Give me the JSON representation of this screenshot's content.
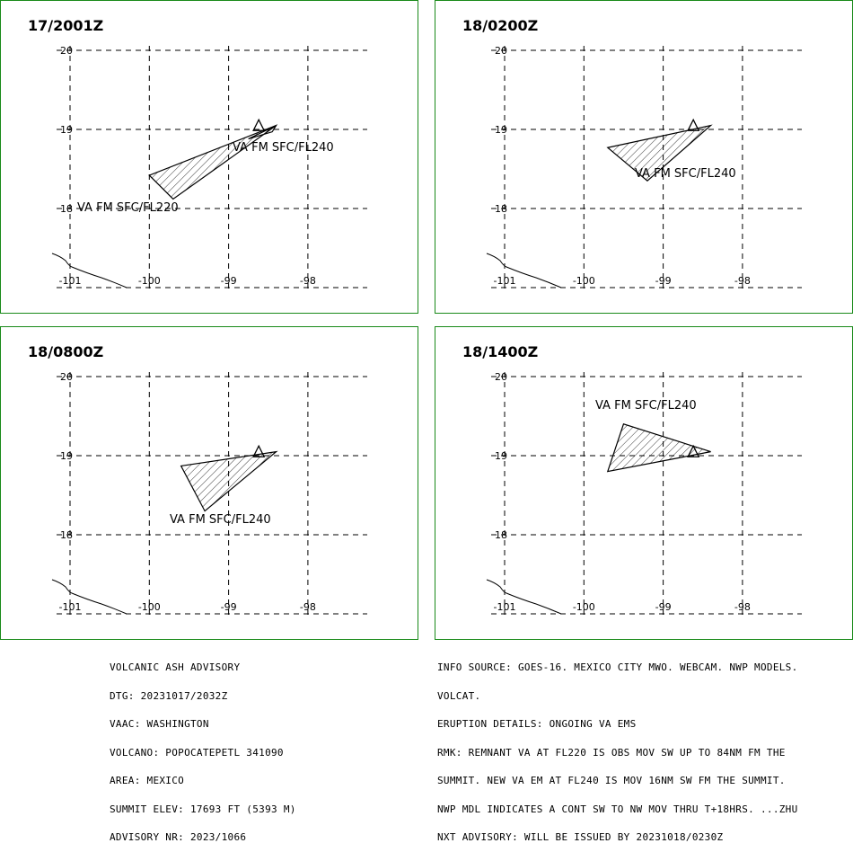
{
  "panels": [
    {
      "id": "p1",
      "time": "17/2001Z",
      "areas": [
        {
          "label": "VA FM SFC/FL240",
          "polygon": [
            [
              -98.4,
              19.05
            ],
            [
              -98.75,
              18.88
            ],
            [
              -98.45,
              18.97
            ]
          ]
        },
        {
          "label": "VA FM SFC/FL220",
          "polygon": [
            [
              -98.4,
              19.05
            ],
            [
              -100.0,
              18.42
            ],
            [
              -99.7,
              18.12
            ]
          ]
        }
      ]
    },
    {
      "id": "p2",
      "time": "18/0200Z",
      "areas": [
        {
          "label": "VA FM SFC/FL240",
          "polygon": [
            [
              -98.4,
              19.05
            ],
            [
              -99.7,
              18.77
            ],
            [
              -99.2,
              18.35
            ]
          ]
        }
      ]
    },
    {
      "id": "p3",
      "time": "18/0800Z",
      "areas": [
        {
          "label": "VA FM SFC/FL240",
          "polygon": [
            [
              -98.4,
              19.05
            ],
            [
              -99.6,
              18.87
            ],
            [
              -99.3,
              18.3
            ]
          ]
        }
      ]
    },
    {
      "id": "p4",
      "time": "18/1400Z",
      "areas": [
        {
          "label": "VA FM SFC/FL240",
          "polygon": [
            [
              -98.4,
              19.05
            ],
            [
              -99.5,
              19.4
            ],
            [
              -99.7,
              18.8
            ]
          ]
        }
      ]
    }
  ],
  "axes": {
    "lon_ticks": [
      "-101",
      "-100",
      "-99",
      "-98"
    ],
    "lat_ticks": [
      "20",
      "19",
      "18"
    ]
  },
  "volcano": {
    "name": "POPOCATEPETL",
    "lat": 19.02,
    "lon": -98.62
  },
  "footer_left": [
    "VOLCANIC ASH ADVISORY",
    "DTG: 20231017/2032Z",
    "VAAC: WASHINGTON",
    "VOLCANO: POPOCATEPETL 341090",
    "AREA: MEXICO",
    "SUMMIT ELEV: 17693 FT (5393 M)",
    "ADVISORY NR: 2023/1066"
  ],
  "footer_right": [
    "INFO SOURCE: GOES-16. MEXICO CITY MWO. WEBCAM. NWP MODELS.",
    "VOLCAT.",
    "ERUPTION DETAILS: ONGOING VA EMS",
    "RMK: REMNANT VA AT FL220 IS OBS MOV SW UP TO 84NM FM THE",
    "SUMMIT. NEW VA EM AT FL240 IS MOV 16NM SW FM THE SUMMIT.",
    "NWP MDL INDICATES A CONT SW TO NW MOV THRU T+18HRS. ...ZHU",
    "NXT ADVISORY: WILL BE ISSUED BY 20231018/0230Z"
  ]
}
